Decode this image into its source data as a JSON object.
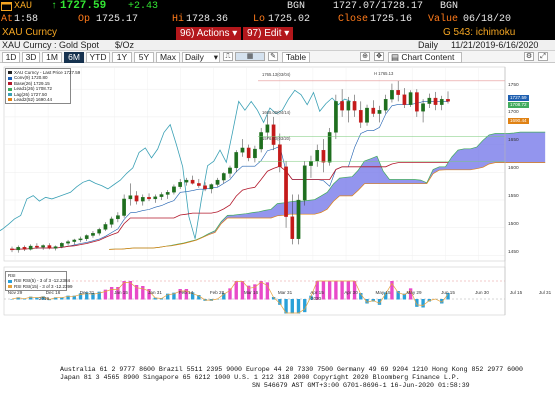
{
  "quote": {
    "ticker": "XAU",
    "last_price": "1727.59",
    "change": "+2.43",
    "bgn_label": "BGN",
    "bid_ask": "1727.07/1728.17",
    "bgn_label2": "BGN",
    "time_label": "At",
    "time_value": "1:58",
    "open_label": "Op",
    "open_value": "1725.17",
    "high_label": "Hi",
    "high_value": "1728.36",
    "low_label": "Lo",
    "low_value": "1725.02",
    "close_label": "Close",
    "close_value": "1725.16",
    "value_label": "Value",
    "value_date": "06/18/20"
  },
  "titlebar": {
    "security": "XAU Curncy",
    "actions_num": "96)",
    "actions_label": "Actions",
    "edit_num": "97)",
    "edit_label": "Edit",
    "page_label": "G 543: ichimoku"
  },
  "secbar": {
    "security_desc": "XAU Curncy : Gold Spot",
    "unit": "$/Oz",
    "frequency": "Daily",
    "date_range": "11/21/2019-6/16/2020"
  },
  "toolbar": {
    "ranges": [
      "1D",
      "3D",
      "1M",
      "6M",
      "YTD",
      "1Y",
      "5Y",
      "Max"
    ],
    "active_range": "6M",
    "period": "Daily",
    "table_label": "Table",
    "chart_content_label": "Chart Content"
  },
  "legend": {
    "title": "XAU Curncy - Last Price",
    "rows": [
      {
        "label": "XAU Curncy - Last Price",
        "value": "1727.59",
        "color": "#222222"
      },
      {
        "label": "Conv(9)",
        "value": "1720.80",
        "color": "#1e5fb0"
      },
      {
        "label": "Base(26)",
        "value": "1729.15",
        "color": "#b2182b"
      },
      {
        "label": "Lead1(26)",
        "value": "1708.72",
        "color": "#41ab5d"
      },
      {
        "label": "Lag(26)",
        "value": "1727.50",
        "color": "#3aa0b5"
      },
      {
        "label": "Lead2(52)",
        "value": "1690.44",
        "color": "#e08214"
      }
    ]
  },
  "legend2": {
    "title": "RSI",
    "rows": [
      {
        "label": "RSI RSI(5) - 3 of 3",
        "value": "-12.2384",
        "color": "#2aa0d8"
      },
      {
        "label": "RSI RSI(15) - 3 of 3",
        "value": "-12.2399",
        "color": "#e6a23c"
      }
    ]
  },
  "axis": {
    "y_ticks": [
      "1750",
      "1700",
      "1650",
      "1600",
      "1550",
      "1500",
      "1450"
    ],
    "price_tags": [
      {
        "text": "1727.59",
        "color": "#1e5fb0"
      },
      {
        "text": "1708.72",
        "color": "#41ab5d"
      },
      {
        "text": "1690.44",
        "color": "#e08214"
      }
    ],
    "x_ticks": [
      "Nov 29",
      "Dec 16",
      "Dec 31",
      "Jan 15",
      "Jan 31",
      "Feb 14",
      "Feb 28",
      "Mar 16",
      "Mar 31",
      "Apr 15",
      "Apr 30",
      "May 15",
      "May 29",
      "Jun 15",
      "Jun 30",
      "Jul 15",
      "Jul 31"
    ],
    "x_years": [
      "2019",
      "2020"
    ],
    "annotations": {
      "high_line": "1765.13(03/04)",
      "mid_line": "1665.00(04/14)",
      "low_line": "1576.60(03/20)",
      "high_marker": "H 1765.13"
    }
  },
  "chart_data": {
    "type": "line",
    "title": "XAU Curncy - Last Price",
    "ylabel": "",
    "xlabel": "",
    "ylim": [
      1440,
      1790
    ],
    "colors": {
      "up_candle": "#1e6e1e",
      "down_candle": "#c41a1a",
      "cloud": "#6f72e8",
      "conv": "#1e5fb0",
      "base": "#b2182b",
      "lag": "#3aa0b5",
      "lead1": "#41ab5d",
      "lead2": "#e08214"
    },
    "candles": [
      [
        1462,
        1466,
        1456,
        1460
      ],
      [
        1460,
        1468,
        1455,
        1465
      ],
      [
        1465,
        1468,
        1458,
        1461
      ],
      [
        1461,
        1470,
        1459,
        1467
      ],
      [
        1467,
        1472,
        1462,
        1465
      ],
      [
        1465,
        1470,
        1460,
        1468
      ],
      [
        1468,
        1472,
        1461,
        1463
      ],
      [
        1463,
        1468,
        1459,
        1466
      ],
      [
        1466,
        1474,
        1463,
        1472
      ],
      [
        1472,
        1478,
        1468,
        1475
      ],
      [
        1475,
        1480,
        1470,
        1478
      ],
      [
        1478,
        1484,
        1474,
        1480
      ],
      [
        1480,
        1488,
        1476,
        1486
      ],
      [
        1486,
        1494,
        1482,
        1490
      ],
      [
        1490,
        1500,
        1486,
        1497
      ],
      [
        1497,
        1510,
        1494,
        1506
      ],
      [
        1506,
        1520,
        1500,
        1516
      ],
      [
        1516,
        1528,
        1510,
        1522
      ],
      [
        1522,
        1560,
        1518,
        1552
      ],
      [
        1552,
        1580,
        1540,
        1558
      ],
      [
        1558,
        1566,
        1542,
        1548
      ],
      [
        1548,
        1560,
        1540,
        1555
      ],
      [
        1555,
        1562,
        1548,
        1552
      ],
      [
        1552,
        1560,
        1545,
        1556
      ],
      [
        1556,
        1564,
        1550,
        1560
      ],
      [
        1560,
        1568,
        1552,
        1564
      ],
      [
        1564,
        1578,
        1560,
        1574
      ],
      [
        1574,
        1588,
        1570,
        1582
      ],
      [
        1582,
        1590,
        1576,
        1586
      ],
      [
        1586,
        1594,
        1578,
        1580
      ],
      [
        1580,
        1588,
        1572,
        1576
      ],
      [
        1576,
        1582,
        1566,
        1570
      ],
      [
        1570,
        1580,
        1562,
        1578
      ],
      [
        1578,
        1590,
        1574,
        1586
      ],
      [
        1586,
        1600,
        1580,
        1598
      ],
      [
        1598,
        1612,
        1590,
        1608
      ],
      [
        1608,
        1640,
        1600,
        1636
      ],
      [
        1636,
        1660,
        1628,
        1644
      ],
      [
        1644,
        1650,
        1620,
        1626
      ],
      [
        1626,
        1648,
        1618,
        1642
      ],
      [
        1642,
        1680,
        1636,
        1672
      ],
      [
        1672,
        1704,
        1660,
        1686
      ],
      [
        1686,
        1700,
        1640,
        1650
      ],
      [
        1650,
        1670,
        1600,
        1610
      ],
      [
        1610,
        1620,
        1500,
        1520
      ],
      [
        1520,
        1560,
        1470,
        1480
      ],
      [
        1480,
        1560,
        1470,
        1550
      ],
      [
        1550,
        1620,
        1540,
        1612
      ],
      [
        1612,
        1630,
        1590,
        1620
      ],
      [
        1620,
        1650,
        1610,
        1640
      ],
      [
        1640,
        1660,
        1600,
        1618
      ],
      [
        1618,
        1680,
        1612,
        1672
      ],
      [
        1672,
        1740,
        1660,
        1728
      ],
      [
        1728,
        1750,
        1700,
        1712
      ],
      [
        1712,
        1736,
        1690,
        1728
      ],
      [
        1728,
        1740,
        1700,
        1712
      ],
      [
        1712,
        1728,
        1680,
        1690
      ],
      [
        1690,
        1722,
        1684,
        1716
      ],
      [
        1716,
        1730,
        1700,
        1706
      ],
      [
        1706,
        1720,
        1690,
        1712
      ],
      [
        1712,
        1740,
        1706,
        1732
      ],
      [
        1732,
        1760,
        1726,
        1748
      ],
      [
        1748,
        1765,
        1728,
        1740
      ],
      [
        1740,
        1752,
        1716,
        1722
      ],
      [
        1722,
        1748,
        1718,
        1744
      ],
      [
        1744,
        1750,
        1700,
        1710
      ],
      [
        1710,
        1732,
        1690,
        1724
      ],
      [
        1724,
        1742,
        1716,
        1734
      ],
      [
        1734,
        1745,
        1712,
        1722
      ],
      [
        1722,
        1738,
        1712,
        1732
      ],
      [
        1732,
        1746,
        1724,
        1728
      ]
    ],
    "oscillator": {
      "x_ticks_same_as_main": true,
      "series": [
        {
          "name": "RSI RSI(5) - 3 of 3",
          "value": -12.2384
        },
        {
          "name": "RSI RSI(15) - 3 of 3",
          "value": -12.2399
        }
      ]
    }
  },
  "footer": {
    "line1": "Australia 61 2 9777 8600 Brazil 5511 2395 9000 Europe 44 20 7330 7500 Germany 49 69 9204 1210 Hong Kong 852 2977 6000",
    "line2": "Japan 81 3 4565 8900        Singapore 65 6212 1000        U.S. 1 212 318 2000          Copyright 2020 Bloomberg Finance L.P.",
    "line3": "SN 546679 AST  GMT+3:00 G701-8696-1 16-Jun-2020 01:58:39"
  }
}
